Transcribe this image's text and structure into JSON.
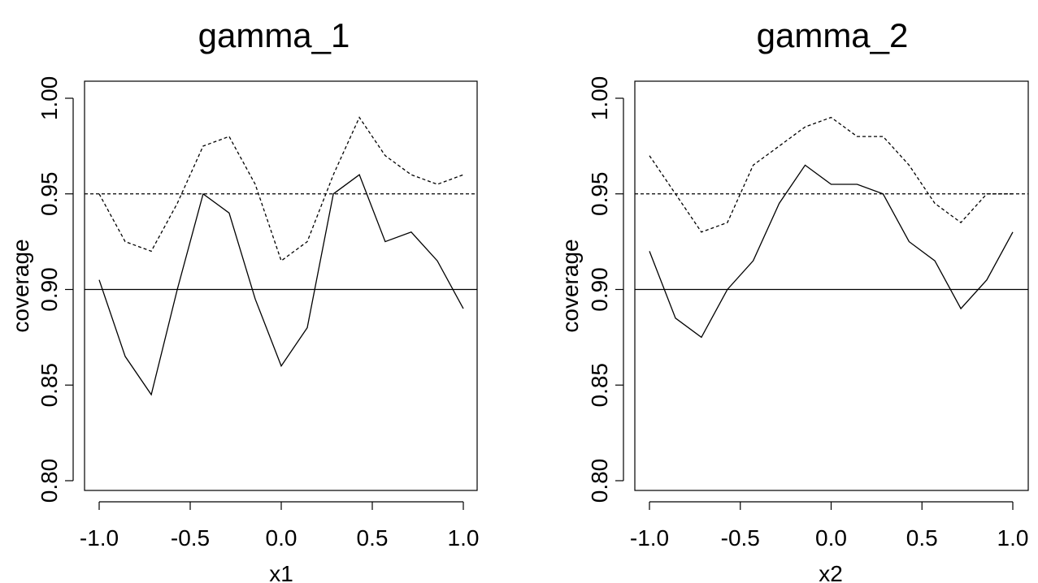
{
  "chart_data": [
    {
      "type": "line",
      "title": "gamma_1",
      "xlabel": "x1",
      "ylabel": "coverage",
      "xlim": [
        -1.0,
        1.0
      ],
      "ylim": [
        0.8,
        1.0
      ],
      "xticks": [
        "-1.0",
        "-0.5",
        "0.0",
        "0.5",
        "1.0"
      ],
      "yticks": [
        "0.80",
        "0.85",
        "0.90",
        "0.95",
        "1.00"
      ],
      "x": [
        -1.0,
        -0.857,
        -0.714,
        -0.571,
        -0.429,
        -0.286,
        -0.143,
        0.0,
        0.143,
        0.286,
        0.429,
        0.571,
        0.714,
        0.857,
        1.0
      ],
      "series": [
        {
          "style": "solid",
          "values": [
            0.905,
            0.865,
            0.845,
            0.9,
            0.95,
            0.94,
            0.895,
            0.86,
            0.88,
            0.95,
            0.96,
            0.925,
            0.93,
            0.915,
            0.89
          ]
        },
        {
          "style": "dashed",
          "values": [
            0.95,
            0.925,
            0.92,
            0.945,
            0.975,
            0.98,
            0.955,
            0.915,
            0.925,
            0.96,
            0.99,
            0.97,
            0.96,
            0.955,
            0.96
          ]
        }
      ],
      "reference_lines": [
        {
          "y": 0.9,
          "style": "solid"
        },
        {
          "y": 0.95,
          "style": "dashed"
        }
      ],
      "grid": false
    },
    {
      "type": "line",
      "title": "gamma_2",
      "xlabel": "x2",
      "ylabel": "coverage",
      "xlim": [
        -1.0,
        1.0
      ],
      "ylim": [
        0.8,
        1.0
      ],
      "xticks": [
        "-1.0",
        "-0.5",
        "0.0",
        "0.5",
        "1.0"
      ],
      "yticks": [
        "0.80",
        "0.85",
        "0.90",
        "0.95",
        "1.00"
      ],
      "x": [
        -1.0,
        -0.857,
        -0.714,
        -0.571,
        -0.429,
        -0.286,
        -0.143,
        0.0,
        0.143,
        0.286,
        0.429,
        0.571,
        0.714,
        0.857,
        1.0
      ],
      "series": [
        {
          "style": "solid",
          "values": [
            0.92,
            0.885,
            0.875,
            0.9,
            0.915,
            0.945,
            0.965,
            0.955,
            0.955,
            0.95,
            0.925,
            0.915,
            0.89,
            0.905,
            0.93
          ]
        },
        {
          "style": "dashed",
          "values": [
            0.97,
            0.95,
            0.93,
            0.935,
            0.965,
            0.975,
            0.985,
            0.99,
            0.98,
            0.98,
            0.965,
            0.945,
            0.935,
            0.95,
            0.95
          ]
        }
      ],
      "reference_lines": [
        {
          "y": 0.9,
          "style": "solid"
        },
        {
          "y": 0.95,
          "style": "dashed"
        }
      ],
      "grid": false
    }
  ]
}
